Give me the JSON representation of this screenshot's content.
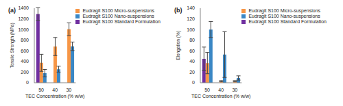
{
  "chart_data": [
    {
      "type": "bar",
      "title": "(a)",
      "x_label": "TEC Concentration (% w/w)",
      "y_label": "Tensile Strength (MPa)",
      "categories": [
        "50",
        "40",
        "30"
      ],
      "series": [
        {
          "name": "Eudragit S100 Standard Formulation",
          "color": "#7030a0",
          "values": [
            1290,
            null,
            null
          ],
          "errors": [
            120,
            null,
            null
          ]
        },
        {
          "name": "Eudragit S100 Micro-suspensions",
          "color": "#f79646",
          "values": [
            375,
            680,
            1005
          ],
          "errors": [
            160,
            170,
            120
          ]
        },
        {
          "name": "Eudragit S100 Nano-suspensions",
          "color": "#3a87c5",
          "values": [
            180,
            255,
            685
          ],
          "errors": [
            70,
            55,
            80
          ]
        }
      ],
      "ylim": [
        0,
        1400
      ],
      "yticks": [
        0,
        200,
        400,
        600,
        800,
        1000,
        1200,
        1400
      ],
      "legend": "top",
      "grid": false
    },
    {
      "type": "bar",
      "title": "(b)",
      "x_label": "TEC Concentration (% w/w)",
      "y_label": "Elongation (%)",
      "categories": [
        "50",
        "40",
        "30"
      ],
      "series": [
        {
          "name": "Eudragit S100 Standard Formulation",
          "color": "#7030a0",
          "values": [
            45,
            null,
            null
          ],
          "errors": [
            22,
            null,
            null
          ]
        },
        {
          "name": "Eudragit S100 Micro-suspensions",
          "color": "#f79646",
          "values": [
            37,
            3,
            3
          ],
          "errors": [
            20,
            1,
            1
          ]
        },
        {
          "name": "Eudragit S100 Nano-suspensions",
          "color": "#3a87c5",
          "values": [
            100,
            53,
            9
          ],
          "errors": [
            15,
            43,
            4
          ]
        }
      ],
      "ylim": [
        0,
        140
      ],
      "yticks": [
        0,
        20,
        40,
        60,
        80,
        100,
        120,
        140
      ],
      "legend": "top",
      "grid": false
    }
  ]
}
